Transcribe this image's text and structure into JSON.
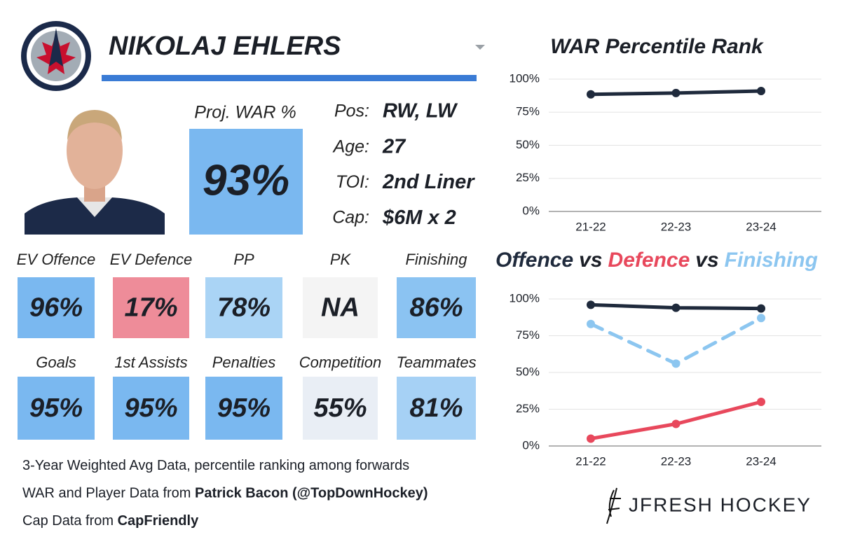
{
  "player": {
    "name": "NIKOLAJ EHLERS",
    "proj_label": "Proj. WAR %",
    "proj_value": "93%",
    "info": [
      {
        "label": "Pos:",
        "value": "RW, LW"
      },
      {
        "label": "Age:",
        "value": "27"
      },
      {
        "label": "TOI:",
        "value": "2nd Liner"
      },
      {
        "label": "Cap:",
        "value": "$6M x 2"
      }
    ]
  },
  "tiles": [
    {
      "label": "EV Offence",
      "value": "96%",
      "color": "#7ab8f0"
    },
    {
      "label": "EV Defence",
      "value": "17%",
      "color": "#ee8c99"
    },
    {
      "label": "PP",
      "value": "78%",
      "color": "#aad4f5"
    },
    {
      "label": "PK",
      "value": "NA",
      "color": "#f4f4f4"
    },
    {
      "label": "Finishing",
      "value": "86%",
      "color": "#8bc3f2"
    },
    {
      "label": "Goals",
      "value": "95%",
      "color": "#7ab8f0"
    },
    {
      "label": "1st Assists",
      "value": "95%",
      "color": "#7ab8f0"
    },
    {
      "label": "Penalties",
      "value": "95%",
      "color": "#7ab8f0"
    },
    {
      "label": "Competition",
      "value": "55%",
      "color": "#e9eef5"
    },
    {
      "label": "Teammates",
      "value": "81%",
      "color": "#a6d1f5"
    }
  ],
  "notes": [
    [
      {
        "text": "3-Year Weighted Avg Data, percentile ranking among forwards",
        "bold": false
      }
    ],
    [
      {
        "text": "WAR and Player Data from ",
        "bold": false
      },
      {
        "text": "Patrick Bacon (@TopDownHockey)",
        "bold": true
      }
    ],
    [
      {
        "text": "Cap Data from ",
        "bold": false
      },
      {
        "text": "CapFriendly",
        "bold": true
      }
    ]
  ],
  "brand": "JFRESH HOCKEY",
  "chart_data": [
    {
      "type": "line",
      "title": "WAR Percentile Rank",
      "categories": [
        "21-22",
        "22-23",
        "23-24"
      ],
      "series": [
        {
          "name": "WAR",
          "color": "#1f2a3c",
          "dash": false,
          "values": [
            88.5,
            89.5,
            91
          ]
        }
      ],
      "ylim": [
        0,
        100
      ],
      "yticks": [
        {
          "value": 0,
          "label": "0%"
        },
        {
          "value": 25,
          "label": "25%"
        },
        {
          "value": 50,
          "label": "50%"
        },
        {
          "value": 75,
          "label": "75%"
        },
        {
          "value": 100,
          "label": "100%"
        }
      ],
      "grid": true
    },
    {
      "type": "line",
      "title_joiner": "vs",
      "categories": [
        "21-22",
        "22-23",
        "23-24"
      ],
      "series": [
        {
          "name": "Offence",
          "color": "#1f2a3c",
          "dash": false,
          "values": [
            96,
            94,
            93.5
          ]
        },
        {
          "name": "Defence",
          "color": "#e8485c",
          "dash": false,
          "values": [
            5,
            15,
            30
          ]
        },
        {
          "name": "Finishing",
          "color": "#8cc6f0",
          "dash": true,
          "values": [
            83,
            56,
            87
          ]
        }
      ],
      "ylim": [
        0,
        100
      ],
      "yticks": [
        {
          "value": 0,
          "label": "0%"
        },
        {
          "value": 25,
          "label": "25%"
        },
        {
          "value": 50,
          "label": "50%"
        },
        {
          "value": 75,
          "label": "75%"
        },
        {
          "value": 100,
          "label": "100%"
        }
      ],
      "grid": true
    }
  ]
}
